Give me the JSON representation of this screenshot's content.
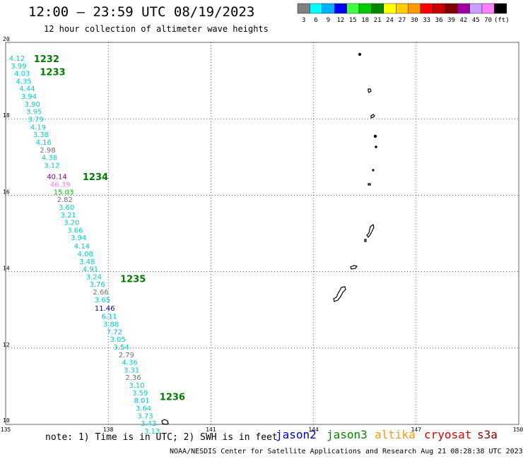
{
  "header": {
    "title": "12:00 – 23:59 UTC 08/19/2023",
    "subtitle": "12 hour collection of altimeter wave heights"
  },
  "color_scale": {
    "unit": "(ft)",
    "bins": [
      {
        "label": "3",
        "color": "#808080"
      },
      {
        "label": "6",
        "color": "#00ffff"
      },
      {
        "label": "9",
        "color": "#00b0ff"
      },
      {
        "label": "12",
        "color": "#0000ff"
      },
      {
        "label": "15",
        "color": "#40ff40"
      },
      {
        "label": "18",
        "color": "#00cc00"
      },
      {
        "label": "21",
        "color": "#008800"
      },
      {
        "label": "24",
        "color": "#ffff00"
      },
      {
        "label": "27",
        "color": "#ffcc00"
      },
      {
        "label": "30",
        "color": "#ff9900"
      },
      {
        "label": "33",
        "color": "#ff0000"
      },
      {
        "label": "36",
        "color": "#cc0000"
      },
      {
        "label": "39",
        "color": "#800000"
      },
      {
        "label": "42",
        "color": "#a000a0"
      },
      {
        "label": "45",
        "color": "#c8a0ff"
      },
      {
        "label": "70",
        "color": "#ff80ff"
      },
      {
        "label": "",
        "color": "#000000"
      }
    ]
  },
  "map": {
    "lon_range": [
      135,
      150
    ],
    "lat_range": [
      10,
      20
    ],
    "lon_ticks": [
      "135",
      "138",
      "141",
      "144",
      "147",
      "150"
    ],
    "lat_ticks": [
      "20",
      "18",
      "16",
      "14",
      "12",
      "10"
    ],
    "pass_labels": [
      {
        "text": "1232",
        "lon": 135.82,
        "lat": 19.48
      },
      {
        "text": "1233",
        "lon": 136.0,
        "lat": 19.14
      },
      {
        "text": "1234",
        "lon": 137.25,
        "lat": 16.4
      },
      {
        "text": "1235",
        "lon": 138.35,
        "lat": 13.72
      },
      {
        "text": "1236",
        "lon": 139.5,
        "lat": 10.64
      }
    ],
    "observations": [
      {
        "lon": 135.1,
        "lat": 19.52,
        "value": "4.12",
        "color": "#00cccc"
      },
      {
        "lon": 135.15,
        "lat": 19.32,
        "value": "3.99",
        "color": "#00cccc"
      },
      {
        "lon": 135.25,
        "lat": 19.12,
        "value": "4.03",
        "color": "#00cccc"
      },
      {
        "lon": 135.3,
        "lat": 18.92,
        "value": "4.35",
        "color": "#00cccc"
      },
      {
        "lon": 135.4,
        "lat": 18.72,
        "value": "4.44",
        "color": "#00cccc"
      },
      {
        "lon": 135.45,
        "lat": 18.52,
        "value": "3.94",
        "color": "#00cccc"
      },
      {
        "lon": 135.55,
        "lat": 18.32,
        "value": "3.90",
        "color": "#00cccc"
      },
      {
        "lon": 135.6,
        "lat": 18.12,
        "value": "3.95",
        "color": "#00cccc"
      },
      {
        "lon": 135.65,
        "lat": 17.92,
        "value": "3.79",
        "color": "#00cccc"
      },
      {
        "lon": 135.72,
        "lat": 17.72,
        "value": "4.19",
        "color": "#00cccc"
      },
      {
        "lon": 135.8,
        "lat": 17.52,
        "value": "3.38",
        "color": "#00cccc"
      },
      {
        "lon": 135.88,
        "lat": 17.32,
        "value": "4.16",
        "color": "#00cccc"
      },
      {
        "lon": 136.0,
        "lat": 17.12,
        "value": "2.98",
        "color": "#707070"
      },
      {
        "lon": 136.05,
        "lat": 16.92,
        "value": "4.38",
        "color": "#00cccc"
      },
      {
        "lon": 136.12,
        "lat": 16.72,
        "value": "3.12",
        "color": "#00cccc"
      },
      {
        "lon": 136.2,
        "lat": 16.42,
        "value": "40.14",
        "color": "#8b008b"
      },
      {
        "lon": 136.3,
        "lat": 16.22,
        "value": "46.39",
        "color": "#ee82ee"
      },
      {
        "lon": 136.4,
        "lat": 16.02,
        "value": "15.03",
        "color": "#00b800"
      },
      {
        "lon": 136.5,
        "lat": 15.82,
        "value": "2.82",
        "color": "#707070"
      },
      {
        "lon": 136.55,
        "lat": 15.62,
        "value": "3.60",
        "color": "#00cccc"
      },
      {
        "lon": 136.6,
        "lat": 15.42,
        "value": "3.21",
        "color": "#00cccc"
      },
      {
        "lon": 136.7,
        "lat": 15.22,
        "value": "3.20",
        "color": "#00cccc"
      },
      {
        "lon": 136.8,
        "lat": 15.02,
        "value": "3.66",
        "color": "#00cccc"
      },
      {
        "lon": 136.9,
        "lat": 14.82,
        "value": "3.94",
        "color": "#00cccc"
      },
      {
        "lon": 137.0,
        "lat": 14.6,
        "value": "4.14",
        "color": "#00cccc"
      },
      {
        "lon": 137.1,
        "lat": 14.4,
        "value": "4.08",
        "color": "#00cccc"
      },
      {
        "lon": 137.15,
        "lat": 14.2,
        "value": "3.48",
        "color": "#00cccc"
      },
      {
        "lon": 137.25,
        "lat": 14.0,
        "value": "4.91",
        "color": "#00cccc"
      },
      {
        "lon": 137.35,
        "lat": 13.8,
        "value": "3.24",
        "color": "#00cccc"
      },
      {
        "lon": 137.45,
        "lat": 13.6,
        "value": "3.76",
        "color": "#00cccc"
      },
      {
        "lon": 137.55,
        "lat": 13.4,
        "value": "2.66",
        "color": "#707070"
      },
      {
        "lon": 137.6,
        "lat": 13.2,
        "value": "3.65",
        "color": "#00cccc"
      },
      {
        "lon": 137.6,
        "lat": 12.98,
        "value": "11.46",
        "color": "#0000cc"
      },
      {
        "lon": 137.8,
        "lat": 12.76,
        "value": "6.11",
        "color": "#00b0ff"
      },
      {
        "lon": 137.85,
        "lat": 12.56,
        "value": "3.88",
        "color": "#00cccc"
      },
      {
        "lon": 137.95,
        "lat": 12.36,
        "value": "7.72",
        "color": "#00b0ff"
      },
      {
        "lon": 138.05,
        "lat": 12.16,
        "value": "3.05",
        "color": "#00cccc"
      },
      {
        "lon": 138.15,
        "lat": 11.96,
        "value": "3.54",
        "color": "#00cccc"
      },
      {
        "lon": 138.3,
        "lat": 11.76,
        "value": "2.79",
        "color": "#707070"
      },
      {
        "lon": 138.4,
        "lat": 11.56,
        "value": "4.36",
        "color": "#00cccc"
      },
      {
        "lon": 138.45,
        "lat": 11.36,
        "value": "3.31",
        "color": "#00cccc"
      },
      {
        "lon": 138.5,
        "lat": 11.16,
        "value": "2.36",
        "color": "#707070"
      },
      {
        "lon": 138.6,
        "lat": 10.96,
        "value": "3.10",
        "color": "#00cccc"
      },
      {
        "lon": 138.7,
        "lat": 10.76,
        "value": "3.59",
        "color": "#00cccc"
      },
      {
        "lon": 138.75,
        "lat": 10.56,
        "value": "8.01",
        "color": "#00b0ff"
      },
      {
        "lon": 138.8,
        "lat": 10.36,
        "value": "3.64",
        "color": "#00cccc"
      },
      {
        "lon": 138.85,
        "lat": 10.16,
        "value": "3.73",
        "color": "#00cccc"
      },
      {
        "lon": 138.95,
        "lat": 9.96,
        "value": "3.43",
        "color": "#00cccc"
      },
      {
        "lon": 139.05,
        "lat": 9.76,
        "value": "3.13",
        "color": "#00cccc"
      }
    ]
  },
  "footer": {
    "note": "note: 1) Time is in UTC; 2) SWH is in feet",
    "credit": "NOAA/NESDIS Center for Satellite Applications and Research   Aug 21 08:28:38 UTC 2023",
    "satellites": [
      {
        "name": "jason2",
        "color": "#0000cc"
      },
      {
        "name": "jason3",
        "color": "#008800"
      },
      {
        "name": "altika",
        "color": "#ff9900"
      },
      {
        "name": "cryosat",
        "color": "#dd0000"
      },
      {
        "name": "s3a",
        "color": "#8b0000"
      }
    ]
  }
}
